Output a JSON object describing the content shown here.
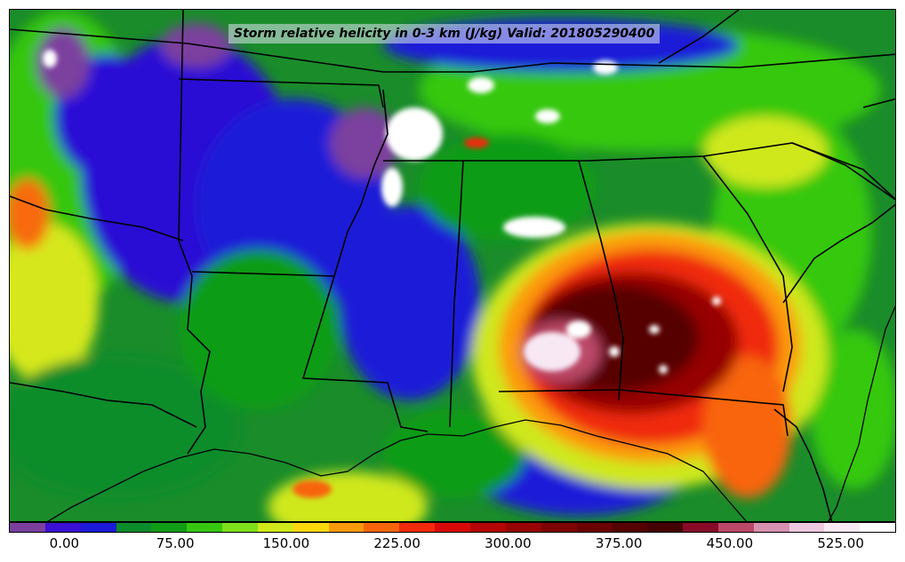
{
  "title": "Storm relative helicity in 0-3 km (J/kg) Valid: 201805290400",
  "colorbar": {
    "colors": [
      "#7b3f9e",
      "#3a10d4",
      "#1a1ad8",
      "#0c8c2c",
      "#109c14",
      "#36c80f",
      "#7ee01a",
      "#cfe81a",
      "#fcd80c",
      "#fc9a0a",
      "#f8650a",
      "#f02a0a",
      "#d80808",
      "#b40404",
      "#960404",
      "#7e0404",
      "#6a0202",
      "#560202",
      "#440202",
      "#880a28",
      "#bb4868",
      "#d690b0",
      "#eec8e0",
      "#f8e8f4",
      "#ffffff"
    ],
    "ticks": [
      "0.00",
      "75.00",
      "150.00",
      "225.00",
      "300.00",
      "375.00",
      "450.00",
      "525.00"
    ],
    "tick_values": [
      0,
      75,
      150,
      225,
      300,
      375,
      450,
      525
    ],
    "min": -37.5,
    "max": 562.5
  },
  "map": {
    "background_color": "#2a5f1a",
    "region": "Southeastern United States"
  }
}
